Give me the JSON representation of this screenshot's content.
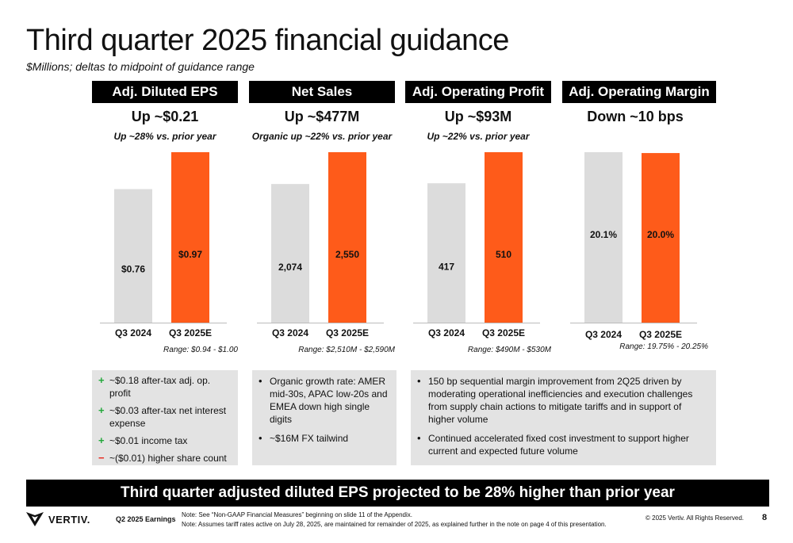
{
  "title": "Third quarter 2025 financial guidance",
  "subtitle": "$Millions; deltas to midpoint of guidance range",
  "colors": {
    "prior": "#dcdcdc",
    "guidance": "#fe5b1a",
    "header": "#000000",
    "box": "#e3e3e3"
  },
  "panels": [
    {
      "header": "Adj. Diluted EPS",
      "delta": "Up ~$0.21",
      "sub": "Up ~28% vs. prior year",
      "range": "Range: $0.94 - $1.00"
    },
    {
      "header": "Net Sales",
      "delta": "Up ~$477M",
      "sub": "Organic up ~22% vs. prior year",
      "range": "Range: $2,510M - $2,590M"
    },
    {
      "header": "Adj. Operating Profit",
      "delta": "Up ~$93M",
      "sub": "Up ~22% vs. prior year",
      "range": "Range: $490M - $530M"
    },
    {
      "header": "Adj. Operating Margin",
      "delta": "Down ~10 bps",
      "sub": "",
      "range": "Range: 19.75% - 20.25%"
    }
  ],
  "chart_data": [
    {
      "type": "bar",
      "title": "Adj. Diluted EPS",
      "categories": [
        "Q3 2024",
        "Q3 2025E"
      ],
      "values": [
        0.76,
        0.97
      ],
      "labels": [
        "$0.76",
        "$0.97"
      ],
      "ylim": [
        0,
        0.97
      ]
    },
    {
      "type": "bar",
      "title": "Net Sales",
      "categories": [
        "Q3 2024",
        "Q3 2025E"
      ],
      "values": [
        2074,
        2550
      ],
      "labels": [
        "2,074",
        "2,550"
      ],
      "ylim": [
        0,
        2550
      ]
    },
    {
      "type": "bar",
      "title": "Adj. Operating Profit",
      "categories": [
        "Q3 2024",
        "Q3 2025E"
      ],
      "values": [
        417,
        510
      ],
      "labels": [
        "417",
        "510"
      ],
      "ylim": [
        0,
        510
      ]
    },
    {
      "type": "bar",
      "title": "Adj. Operating Margin",
      "categories": [
        "Q3 2024",
        "Q3 2025E"
      ],
      "values": [
        20.1,
        20.0
      ],
      "labels": [
        "20.1%",
        "20.0%"
      ],
      "ylim": [
        0,
        20.1
      ]
    }
  ],
  "eps_drivers": [
    {
      "sign": "+",
      "text": "~$0.18 after-tax adj. op. profit"
    },
    {
      "sign": "+",
      "text": "~$0.03 after-tax net interest expense"
    },
    {
      "sign": "+",
      "text": "~$0.01 income tax"
    },
    {
      "sign": "−",
      "text": "~($0.01) higher share count"
    }
  ],
  "sales_notes": [
    "Organic growth rate:  AMER mid-30s, APAC low-20s and EMEA down high single digits",
    "~$16M FX tailwind"
  ],
  "margin_notes": [
    "150 bp sequential margin improvement from 2Q25 driven by moderating operational inefficiencies and execution challenges from supply chain actions to mitigate tariffs and in support of higher volume",
    "Continued accelerated fixed cost investment to support higher current and expected future volume"
  ],
  "banner": "Third quarter adjusted diluted EPS projected to be 28% higher than prior year",
  "footer": {
    "logo": "VERTIV.",
    "earnings": "Q2 2025 Earnings",
    "note1": "Note: See “Non-GAAP Financial Measures” beginning on slide 11 of the Appendix.",
    "note2": "Note: Assumes tariff rates active on July 28, 2025, are maintained for remainder of 2025, as explained further in the note on page 4 of this presentation.",
    "copyright": "© 2025 Vertiv. All Rights Reserved.",
    "page": "8"
  }
}
